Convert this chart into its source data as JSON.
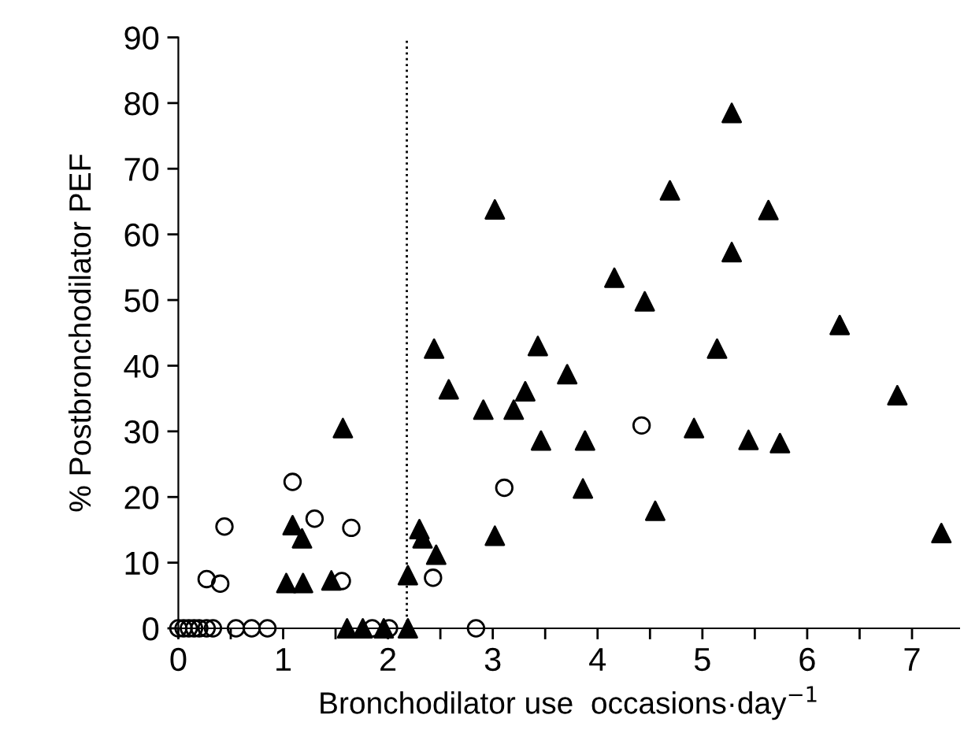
{
  "chart_data": {
    "type": "scatter",
    "xlabel": "Bronchodilator use  occasions·day$^{−1}$",
    "ylabel": "% Postbronchodilator PEF",
    "xlim": [
      0,
      7.45
    ],
    "ylim": [
      0,
      90
    ],
    "xticks": [
      0,
      {
        "value": 0.5,
        "label": null
      },
      1,
      {
        "value": 1.5,
        "label": null
      },
      2,
      {
        "value": 2.5,
        "label": null
      },
      3,
      {
        "value": 3.5,
        "label": null
      },
      4,
      {
        "value": 4.5,
        "label": null
      },
      5,
      {
        "value": 5.5,
        "label": null
      },
      6,
      {
        "value": 6.5,
        "label": null
      },
      7
    ],
    "yticks": [
      0,
      10,
      20,
      30,
      40,
      50,
      60,
      70,
      80,
      90
    ],
    "grid": false,
    "legend": false,
    "ref_lines": [
      {
        "axis": "x",
        "value": 2.18,
        "line_style": "dotted",
        "color": "#000000"
      }
    ],
    "series": [
      {
        "color": "#000000",
        "marker": "circle",
        "x": [
          0,
          0.05,
          0.1,
          0.15,
          0.2,
          0.27,
          0.33,
          0.27,
          0.4,
          0.44,
          0.55,
          0.7,
          0.85,
          1.09,
          1.3,
          1.65,
          1.56,
          1.85,
          2.01,
          2.43,
          2.84,
          3.11,
          4.42
        ],
        "values": [
          0,
          0,
          0,
          0,
          0,
          0,
          0,
          7.5,
          6.8,
          15.5,
          0,
          0,
          0,
          22.3,
          16.7,
          15.3,
          7.2,
          0,
          0,
          7.7,
          0,
          21.4,
          30.9
        ]
      },
      {
        "color": "#000000",
        "marker": "triangle",
        "x": [
          1.03,
          1.19,
          1.09,
          1.18,
          1.46,
          1.57,
          1.61,
          1.76,
          1.96,
          2.19,
          2.19,
          2.3,
          2.33,
          2.46,
          2.44,
          2.58,
          2.91,
          3.02,
          3.02,
          3.2,
          3.31,
          3.43,
          3.46,
          3.71,
          3.88,
          3.86,
          4.16,
          4.45,
          4.55,
          4.69,
          4.92,
          5.14,
          5.28,
          5.28,
          5.44,
          5.63,
          5.74,
          6.31,
          6.86,
          7.28
        ],
        "values": [
          6.9,
          6.9,
          15.7,
          13.7,
          7.3,
          30.5,
          0,
          0,
          0,
          0,
          8.1,
          15.1,
          13.7,
          11.2,
          42.6,
          36.4,
          33.3,
          63.8,
          14.1,
          33.3,
          36.1,
          43.0,
          28.6,
          38.7,
          28.6,
          21.3,
          53.4,
          49.8,
          17.9,
          66.7,
          30.5,
          42.6,
          78.5,
          57.3,
          28.7,
          63.7,
          28.2,
          46.2,
          35.5,
          14.5
        ]
      }
    ]
  }
}
